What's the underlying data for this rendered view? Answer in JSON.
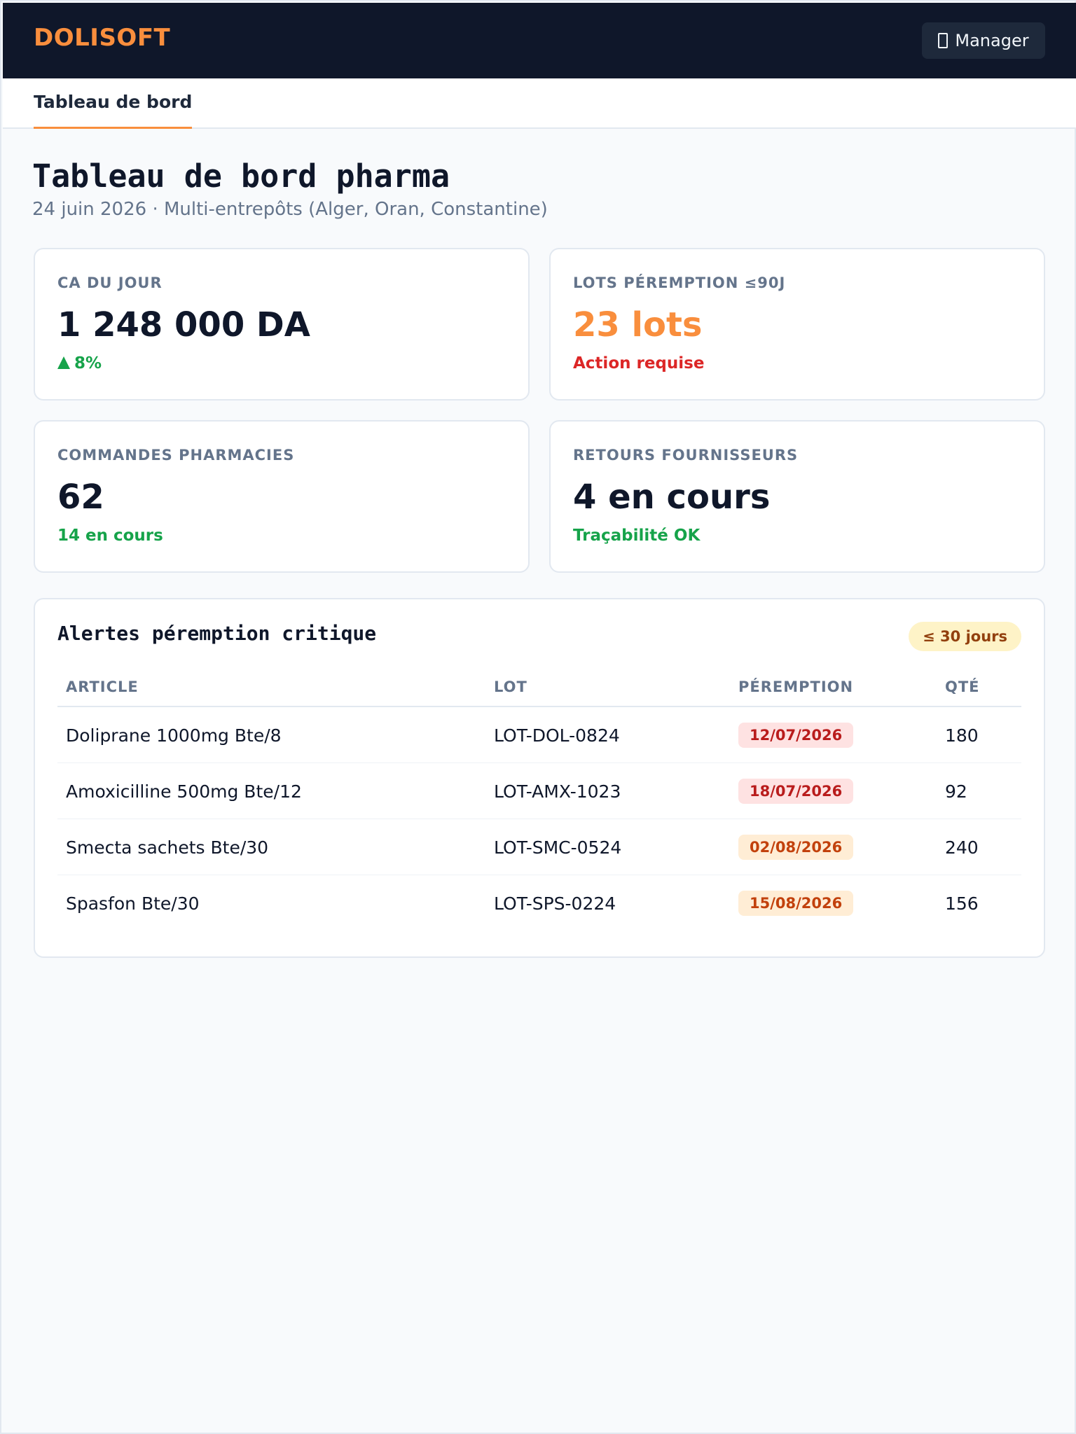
{
  "app": {
    "brand": "DOLISOFT",
    "user_label": "Manager"
  },
  "tabs": [
    {
      "label": "Tableau de bord",
      "active": true
    }
  ],
  "page": {
    "title": "Tableau de bord pharma",
    "subtitle": "24 juin 2026 · Multi-entrepôts (Alger, Oran, Constantine)"
  },
  "kpis": [
    {
      "label": "CA du jour",
      "value": "1 248 000 DA",
      "note": "8%",
      "note_trend": "up",
      "note_color": "#16a34a"
    },
    {
      "label": "Lots péremption ≤90j",
      "value": "23 lots",
      "value_color": "#f98e3d",
      "note": "Action requise",
      "note_color": "#dc2626"
    },
    {
      "label": "Commandes pharmacies",
      "value": "62",
      "note": "14 en cours",
      "note_color": "#16a34a"
    },
    {
      "label": "Retours fournisseurs",
      "value": "4 en cours",
      "note": "Traçabilité OK",
      "note_color": "#16a34a"
    }
  ],
  "alerts": {
    "title": "Alertes péremption critique",
    "badge": "≤ 30 jours",
    "columns": [
      "Article",
      "Lot",
      "Péremption",
      "Qté"
    ],
    "rows": [
      {
        "article": "Doliprane 1000mg Bte/8",
        "lot": "LOT-DOL-0824",
        "expiry": "12/07/2026",
        "expiry_level": "red",
        "qty": "180"
      },
      {
        "article": "Amoxicilline 500mg Bte/12",
        "lot": "LOT-AMX-1023",
        "expiry": "18/07/2026",
        "expiry_level": "red",
        "qty": "92"
      },
      {
        "article": "Smecta sachets Bte/30",
        "lot": "LOT-SMC-0524",
        "expiry": "02/08/2026",
        "expiry_level": "orange",
        "qty": "240"
      },
      {
        "article": "Spasfon Bte/30",
        "lot": "LOT-SPS-0224",
        "expiry": "15/08/2026",
        "expiry_level": "orange",
        "qty": "156"
      }
    ]
  },
  "colors": {
    "accent": "#f98e3d",
    "header_bg": "#0f172a",
    "success": "#16a34a",
    "danger": "#dc2626"
  },
  "icons": {
    "user": "user-icon"
  }
}
